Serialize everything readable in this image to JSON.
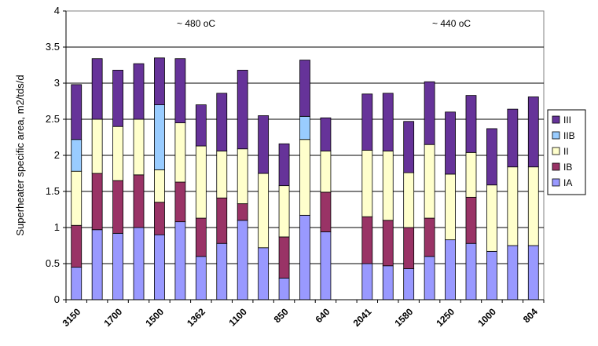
{
  "chart_data": {
    "type": "bar",
    "stacked": true,
    "title": "",
    "xlabel": "",
    "ylabel": "Superheater specific area, m2/tds/d",
    "ylim": [
      0,
      4
    ],
    "yticks": [
      0,
      0.5,
      1,
      1.5,
      2,
      2.5,
      3,
      3.5,
      4
    ],
    "ytick_labels": [
      "0",
      "0.5",
      "1",
      "1.5",
      "2",
      "2.5",
      "3",
      "3.5",
      "4"
    ],
    "grid": "horizontal",
    "legend_position": "right",
    "annotations": [
      {
        "text": "~ 480 oC",
        "group": "left"
      },
      {
        "text": "~ 440 oC",
        "group": "right"
      }
    ],
    "series": [
      {
        "name": "IA",
        "color": "#9999ff"
      },
      {
        "name": "IB",
        "color": "#993366"
      },
      {
        "name": "II",
        "color": "#ffffcc"
      },
      {
        "name": "IIB",
        "color": "#99ccff"
      },
      {
        "name": "III",
        "color": "#663399"
      }
    ],
    "legend_order": [
      "III",
      "IIB",
      "II",
      "IB",
      "IA"
    ],
    "bars": [
      {
        "label": "3150",
        "IA": 0.45,
        "IB": 0.58,
        "II": 0.75,
        "IIB": 0.44,
        "III": 0.76
      },
      {
        "label": "",
        "IA": 0.97,
        "IB": 0.78,
        "II": 0.75,
        "IIB": 0,
        "III": 0.84
      },
      {
        "label": "1700",
        "IA": 0.92,
        "IB": 0.73,
        "II": 0.75,
        "IIB": 0,
        "III": 0.78
      },
      {
        "label": "",
        "IA": 1.0,
        "IB": 0.73,
        "II": 0.77,
        "IIB": 0,
        "III": 0.77
      },
      {
        "label": "1500",
        "IA": 0.9,
        "IB": 0.45,
        "II": 0.45,
        "IIB": 0.9,
        "III": 0.65
      },
      {
        "label": "",
        "IA": 1.08,
        "IB": 0.55,
        "II": 0.82,
        "IIB": 0,
        "III": 0.89
      },
      {
        "label": "1362",
        "IA": 0.6,
        "IB": 0.53,
        "II": 1.0,
        "IIB": 0,
        "III": 0.57
      },
      {
        "label": "",
        "IA": 0.78,
        "IB": 0.63,
        "II": 0.65,
        "IIB": 0,
        "III": 0.8
      },
      {
        "label": "1100",
        "IA": 1.1,
        "IB": 0.23,
        "II": 0.76,
        "IIB": 0,
        "III": 1.09
      },
      {
        "label": "",
        "IA": 0.72,
        "IB": 0,
        "II": 1.03,
        "IIB": 0,
        "III": 0.8
      },
      {
        "label": "850",
        "IA": 0.3,
        "IB": 0.57,
        "II": 0.71,
        "IIB": 0,
        "III": 0.58
      },
      {
        "label": "",
        "IA": 1.17,
        "IB": 0,
        "II": 1.05,
        "IIB": 0.32,
        "III": 0.78
      },
      {
        "label": "640",
        "IA": 0.94,
        "IB": 0.55,
        "II": 0.57,
        "IIB": 0,
        "III": 0.46
      },
      {
        "label": "2041",
        "IA": 0.5,
        "IB": 0.65,
        "II": 0.92,
        "IIB": 0,
        "III": 0.78
      },
      {
        "label": "",
        "IA": 0.47,
        "IB": 0.63,
        "II": 0.96,
        "IIB": 0,
        "III": 0.8
      },
      {
        "label": "1580",
        "IA": 0.43,
        "IB": 0.57,
        "II": 0.76,
        "IIB": 0,
        "III": 0.71
      },
      {
        "label": "",
        "IA": 0.6,
        "IB": 0.53,
        "II": 1.02,
        "IIB": 0,
        "III": 0.87
      },
      {
        "label": "1250",
        "IA": 0.83,
        "IB": 0,
        "II": 0.91,
        "IIB": 0,
        "III": 0.86
      },
      {
        "label": "",
        "IA": 0.78,
        "IB": 0.64,
        "II": 0.62,
        "IIB": 0,
        "III": 0.79
      },
      {
        "label": "1000",
        "IA": 0.67,
        "IB": 0,
        "II": 0.92,
        "IIB": 0,
        "III": 0.78
      },
      {
        "label": "",
        "IA": 0.75,
        "IB": 0,
        "II": 1.09,
        "IIB": 0,
        "III": 0.8
      },
      {
        "label": "804",
        "IA": 0.75,
        "IB": 0,
        "II": 1.09,
        "IIB": 0,
        "III": 0.97
      }
    ]
  }
}
